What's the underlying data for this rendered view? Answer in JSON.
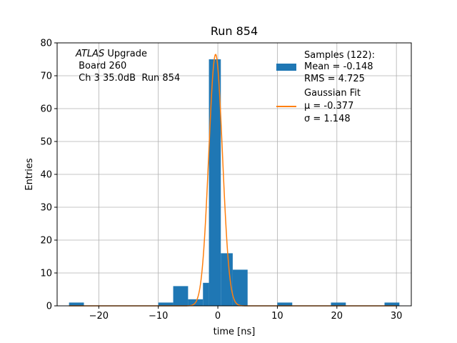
{
  "chart_data": {
    "type": "bar",
    "title": "Run 854",
    "xlabel": "time [ns]",
    "ylabel": "Entries",
    "xlim": [
      -27,
      32.5
    ],
    "ylim": [
      0,
      80
    ],
    "xticks": [
      -20,
      -10,
      0,
      10,
      20,
      30
    ],
    "yticks": [
      0,
      10,
      20,
      30,
      40,
      50,
      60,
      70,
      80
    ],
    "grid": true,
    "legend_position": "top-right",
    "bar_color": "#1f77b4",
    "fit_color": "#ff7f0e",
    "bins": [
      {
        "x0": -25,
        "x1": -22.5,
        "value": 1
      },
      {
        "x0": -10,
        "x1": -7.5,
        "value": 1
      },
      {
        "x0": -7.5,
        "x1": -5,
        "value": 6
      },
      {
        "x0": -5,
        "x1": -2.5,
        "value": 2
      },
      {
        "x0": -2.5,
        "x1": -1.5,
        "value": 7
      },
      {
        "x0": -1.5,
        "x1": 0.5,
        "value": 75
      },
      {
        "x0": 0.5,
        "x1": 2.5,
        "value": 16
      },
      {
        "x0": 2.5,
        "x1": 5,
        "value": 11
      },
      {
        "x0": 10,
        "x1": 12.5,
        "value": 1
      },
      {
        "x0": 19,
        "x1": 21.5,
        "value": 1
      },
      {
        "x0": 28,
        "x1": 30.5,
        "value": 1
      }
    ],
    "gaussian_fit": {
      "mu": -0.377,
      "sigma": 1.148,
      "amplitude": 76.5,
      "x_range": [
        -25,
        30
      ]
    },
    "annotation": {
      "line1_italic": "ATLAS",
      "line1_rest": " Upgrade",
      "line2": " Board 260",
      "line3": " Ch 3 35.0dB  Run 854"
    },
    "legend": {
      "samples_lines": [
        "Samples (122):",
        "Mean = -0.148",
        "RMS = 4.725"
      ],
      "fit_lines": [
        "Gaussian Fit",
        "μ = -0.377",
        "σ = 1.148"
      ]
    }
  }
}
